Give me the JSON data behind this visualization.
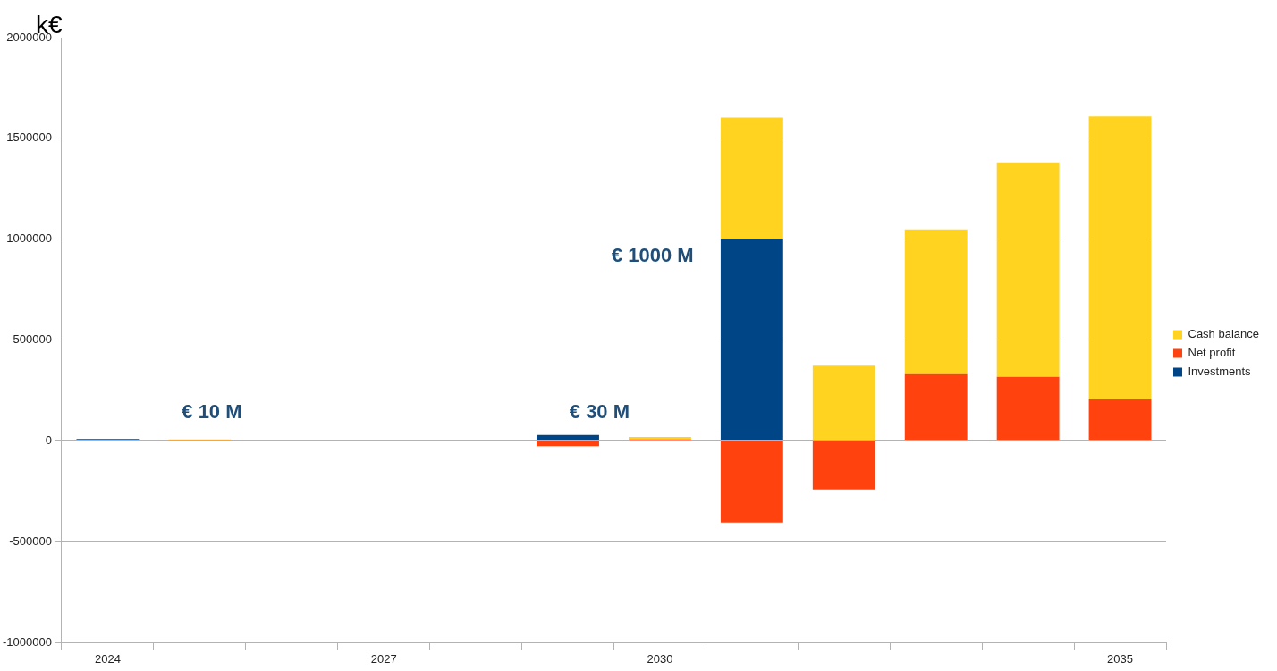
{
  "chart_data": {
    "type": "bar",
    "ylabel": "k€",
    "stacked": true,
    "legend": "right",
    "grid": "y",
    "categories": [
      "2024",
      null,
      null,
      "2027",
      null,
      null,
      "2030",
      null,
      null,
      null,
      null,
      "2035"
    ],
    "series": [
      {
        "name": "Investments",
        "color": "#004586",
        "values": [
          10000,
          0,
          0,
          0,
          0,
          30000,
          0,
          1000000,
          0,
          0,
          0,
          0
        ]
      },
      {
        "name": "Net profit",
        "color": "#ff420e",
        "values": [
          0,
          4000,
          0,
          0,
          0,
          -25000,
          8000,
          -404000,
          -240000,
          331000,
          318000,
          206000
        ]
      },
      {
        "name": "Cash balance",
        "color": "#ffd320",
        "values": [
          null,
          4000,
          null,
          null,
          null,
          0,
          12000,
          604000,
          374000,
          718000,
          1063000,
          1403000
        ]
      }
    ],
    "ylim": [
      -1000000,
      2000000
    ],
    "yticks": [
      -1000000,
      -500000,
      0,
      500000,
      1000000,
      1500000,
      2000000
    ],
    "annotations": [
      "€ 10 M",
      "€ 30 M",
      "€ 1000 M"
    ]
  }
}
